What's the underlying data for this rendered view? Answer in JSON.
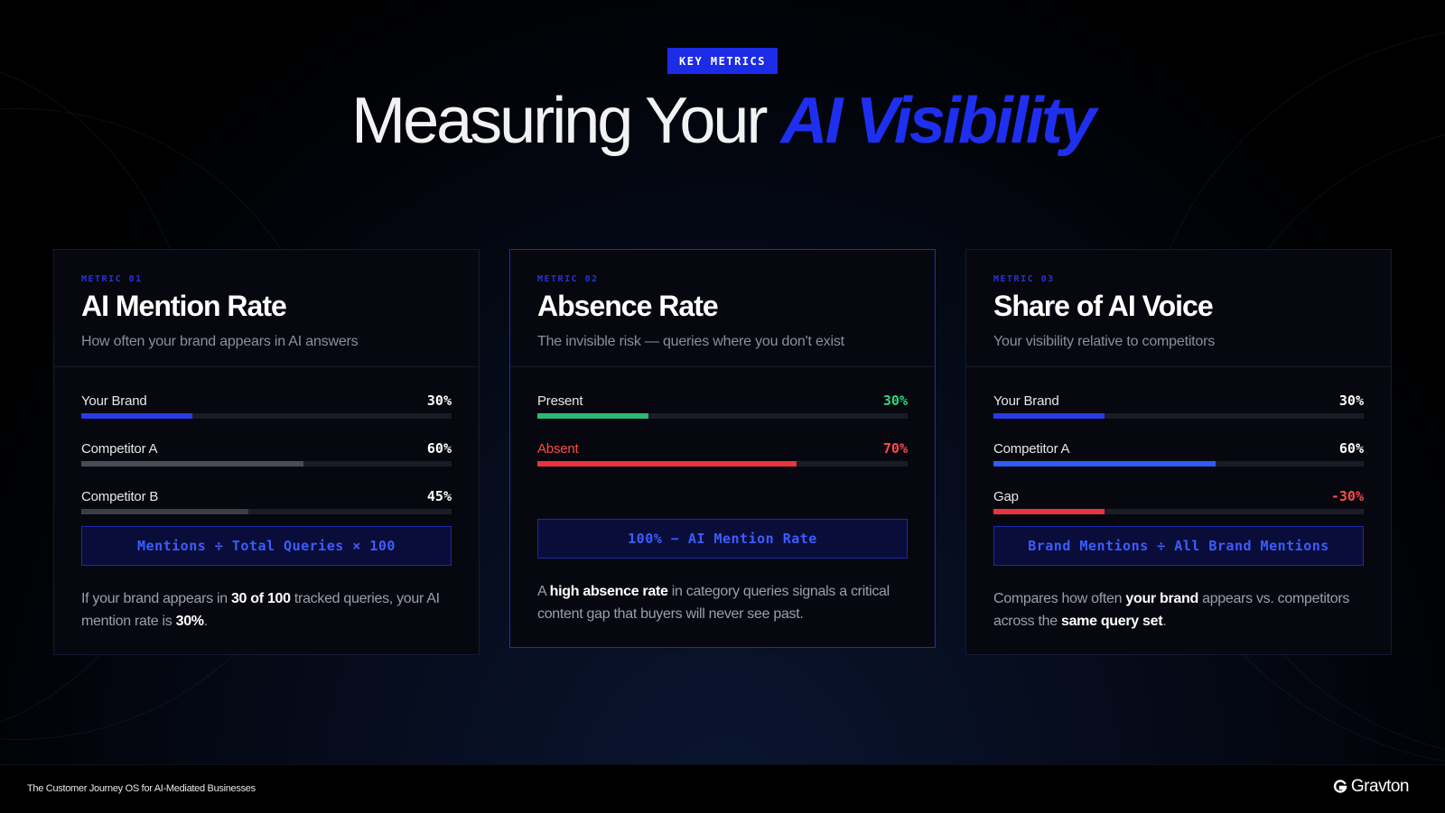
{
  "badge": "KEY METRICS",
  "headline": {
    "plain": "Measuring Your",
    "accent": "AI Visibility"
  },
  "cards": [
    {
      "tag": "METRIC 01",
      "title": "AI Mention Rate",
      "subtitle": "How often your brand appears in AI answers",
      "bars": [
        {
          "label": "Your Brand",
          "value": "30%",
          "fraction": 0.3,
          "color": "#2b3ae8",
          "label_color": "#e6e6e6",
          "value_color": "#ffffff"
        },
        {
          "label": "Competitor A",
          "value": "60%",
          "fraction": 0.6,
          "color": "#4a4c55",
          "label_color": "#e6e6e6",
          "value_color": "#ffffff"
        },
        {
          "label": "Competitor B",
          "value": "45%",
          "fraction": 0.45,
          "color": "#3c3e46",
          "label_color": "#e6e6e6",
          "value_color": "#ffffff"
        }
      ],
      "formula": "Mentions ÷ Total Queries × 100",
      "desc": {
        "p1": "If your brand appears in ",
        "b1": "30 of 100",
        "p2": " tracked queries, your AI mention rate is ",
        "b2": "30%",
        "p3": "."
      }
    },
    {
      "tag": "METRIC 02",
      "title": "Absence Rate",
      "subtitle": "The invisible risk — queries where you don't exist",
      "bars": [
        {
          "label": "Present",
          "value": "30%",
          "fraction": 0.3,
          "color": "#2bb874",
          "label_color": "#e6e6e6",
          "value_color": "#2fd67f"
        },
        {
          "label": "Absent",
          "value": "70%",
          "fraction": 0.7,
          "color": "#e8343f",
          "label_color": "#ff4a4a",
          "value_color": "#ff4a4a"
        }
      ],
      "formula": "100% − AI Mention Rate",
      "desc": {
        "p1": "A ",
        "b1": "high absence rate",
        "p2": " in category queries signals a critical content gap that buyers will never see past.",
        "b2": "",
        "p3": ""
      }
    },
    {
      "tag": "METRIC 03",
      "title": "Share of AI Voice",
      "subtitle": "Your visibility relative to competitors",
      "bars": [
        {
          "label": "Your Brand",
          "value": "30%",
          "fraction": 0.3,
          "color": "#2b3ae8",
          "label_color": "#e6e6e6",
          "value_color": "#ffffff"
        },
        {
          "label": "Competitor A",
          "value": "60%",
          "fraction": 0.6,
          "color": "#2f5cf5",
          "label_color": "#e6e6e6",
          "value_color": "#ffffff"
        },
        {
          "label": "Gap",
          "value": "-30%",
          "fraction": 0.3,
          "color": "#e8343f",
          "label_color": "#e6e6e6",
          "value_color": "#ff4a4a"
        }
      ],
      "formula": "Brand Mentions ÷ All Brand Mentions",
      "desc": {
        "p1": "Compares how often ",
        "b1": "your brand",
        "p2": " appears vs. competitors across the ",
        "b2": "same query set",
        "p3": "."
      }
    }
  ],
  "footer": {
    "tagline": "The Customer Journey OS for AI-Mediated Businesses",
    "brand": "Gravton"
  }
}
